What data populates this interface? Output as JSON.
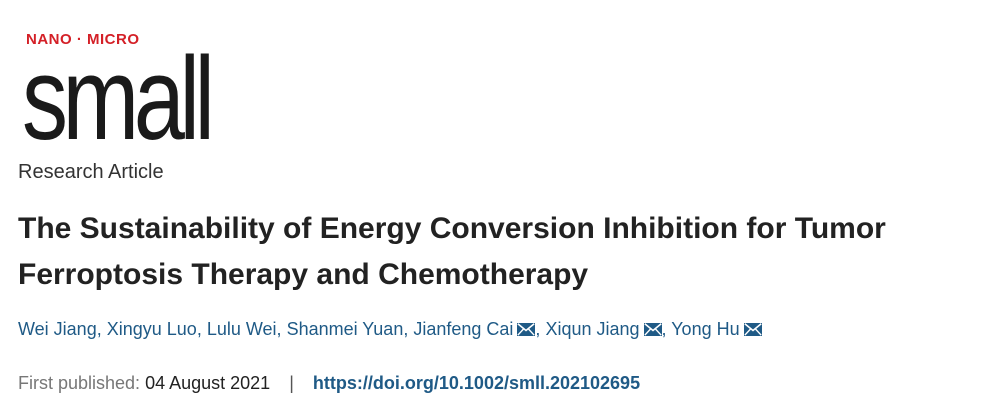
{
  "journal": {
    "logo_top": "NANO · MICRO",
    "logo_main": "small"
  },
  "article": {
    "type": "Research Article",
    "title": "The Sustainability of Energy Conversion Inhibition for Tumor Ferroptosis Therapy and Chemotherapy"
  },
  "authors": [
    {
      "name": "Wei Jiang",
      "corresponding": false
    },
    {
      "name": "Xingyu Luo",
      "corresponding": false
    },
    {
      "name": "Lulu Wei",
      "corresponding": false
    },
    {
      "name": "Shanmei Yuan",
      "corresponding": false
    },
    {
      "name": "Jianfeng Cai",
      "corresponding": true
    },
    {
      "name": "Xiqun Jiang",
      "corresponding": true
    },
    {
      "name": "Yong Hu",
      "corresponding": true
    }
  ],
  "publication": {
    "label": "First published:",
    "date": "04 August 2021",
    "divider": "|",
    "doi": "https://doi.org/10.1002/smll.202102695"
  },
  "colors": {
    "logo_red": "#d42027",
    "link_blue": "#1f5a86"
  },
  "icons": {
    "corresponding": "envelope-icon"
  }
}
